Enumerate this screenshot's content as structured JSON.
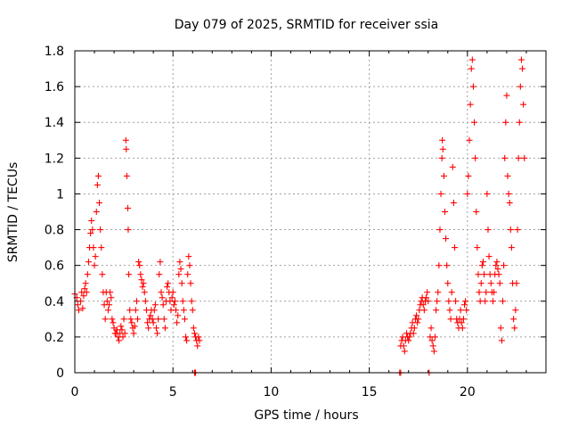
{
  "chart_data": {
    "type": "scatter",
    "title": "Day 079 of 2025, SRMTID for receiver ssia",
    "xlabel": "GPS time / hours",
    "ylabel": "SRMTID / TECUs",
    "xlim": [
      0,
      24
    ],
    "ylim": [
      0,
      1.8
    ],
    "xticks": [
      0,
      5,
      10,
      15,
      20
    ],
    "xtick_labels": [
      "0",
      "5",
      "10",
      "15",
      "20"
    ],
    "yticks": [
      0,
      0.2,
      0.4,
      0.6,
      0.8,
      1,
      1.2,
      1.4,
      1.6,
      1.8
    ],
    "ytick_labels": [
      "0",
      "0.2",
      "0.4",
      "0.6",
      "0.8",
      "1",
      "1.2",
      "1.4",
      "1.6",
      "1.8"
    ],
    "grid": true,
    "marker": "plus",
    "color": "#ff0000",
    "series": [
      {
        "name": "SRMTID",
        "points": [
          [
            0.0,
            0.44
          ],
          [
            0.1,
            0.42
          ],
          [
            0.15,
            0.38
          ],
          [
            0.2,
            0.35
          ],
          [
            0.3,
            0.4
          ],
          [
            0.35,
            0.45
          ],
          [
            0.4,
            0.36
          ],
          [
            0.45,
            0.43
          ],
          [
            0.5,
            0.47
          ],
          [
            0.55,
            0.5
          ],
          [
            0.6,
            0.45
          ],
          [
            0.65,
            0.55
          ],
          [
            0.7,
            0.62
          ],
          [
            0.75,
            0.7
          ],
          [
            0.8,
            0.78
          ],
          [
            0.85,
            0.85
          ],
          [
            0.9,
            0.8
          ],
          [
            0.95,
            0.7
          ],
          [
            1.0,
            0.6
          ],
          [
            1.05,
            0.65
          ],
          [
            1.1,
            0.9
          ],
          [
            1.15,
            1.05
          ],
          [
            1.2,
            1.1
          ],
          [
            1.25,
            0.95
          ],
          [
            1.3,
            0.8
          ],
          [
            1.35,
            0.7
          ],
          [
            1.4,
            0.55
          ],
          [
            1.45,
            0.45
          ],
          [
            1.5,
            0.38
          ],
          [
            1.55,
            0.3
          ],
          [
            1.6,
            0.45
          ],
          [
            1.65,
            0.4
          ],
          [
            1.7,
            0.35
          ],
          [
            1.75,
            0.38
          ],
          [
            1.8,
            0.45
          ],
          [
            1.85,
            0.42
          ],
          [
            1.9,
            0.3
          ],
          [
            1.95,
            0.28
          ],
          [
            2.0,
            0.25
          ],
          [
            2.05,
            0.22
          ],
          [
            2.1,
            0.22
          ],
          [
            2.15,
            0.24
          ],
          [
            2.2,
            0.2
          ],
          [
            2.25,
            0.18
          ],
          [
            2.3,
            0.22
          ],
          [
            2.35,
            0.26
          ],
          [
            2.4,
            0.24
          ],
          [
            2.45,
            0.2
          ],
          [
            2.5,
            0.3
          ],
          [
            2.55,
            0.22
          ],
          [
            2.6,
            1.3
          ],
          [
            2.62,
            1.25
          ],
          [
            2.65,
            1.1
          ],
          [
            2.7,
            0.92
          ],
          [
            2.72,
            0.8
          ],
          [
            2.75,
            0.55
          ],
          [
            2.8,
            0.35
          ],
          [
            2.85,
            0.3
          ],
          [
            2.9,
            0.28
          ],
          [
            2.95,
            0.25
          ],
          [
            3.0,
            0.22
          ],
          [
            3.05,
            0.26
          ],
          [
            3.1,
            0.35
          ],
          [
            3.15,
            0.4
          ],
          [
            3.2,
            0.3
          ],
          [
            3.25,
            0.62
          ],
          [
            3.3,
            0.6
          ],
          [
            3.35,
            0.55
          ],
          [
            3.4,
            0.52
          ],
          [
            3.45,
            0.48
          ],
          [
            3.5,
            0.5
          ],
          [
            3.55,
            0.45
          ],
          [
            3.6,
            0.4
          ],
          [
            3.65,
            0.35
          ],
          [
            3.7,
            0.28
          ],
          [
            3.75,
            0.25
          ],
          [
            3.8,
            0.3
          ],
          [
            3.85,
            0.32
          ],
          [
            3.9,
            0.35
          ],
          [
            3.95,
            0.3
          ],
          [
            4.0,
            0.28
          ],
          [
            4.05,
            0.35
          ],
          [
            4.1,
            0.38
          ],
          [
            4.15,
            0.25
          ],
          [
            4.2,
            0.22
          ],
          [
            4.25,
            0.3
          ],
          [
            4.3,
            0.55
          ],
          [
            4.35,
            0.62
          ],
          [
            4.4,
            0.45
          ],
          [
            4.45,
            0.42
          ],
          [
            4.5,
            0.38
          ],
          [
            4.55,
            0.3
          ],
          [
            4.6,
            0.25
          ],
          [
            4.65,
            0.4
          ],
          [
            4.7,
            0.48
          ],
          [
            4.75,
            0.5
          ],
          [
            4.8,
            0.45
          ],
          [
            4.85,
            0.4
          ],
          [
            4.9,
            0.35
          ],
          [
            4.95,
            0.42
          ],
          [
            5.0,
            0.45
          ],
          [
            5.05,
            0.38
          ],
          [
            5.1,
            0.4
          ],
          [
            5.15,
            0.35
          ],
          [
            5.2,
            0.28
          ],
          [
            5.25,
            0.32
          ],
          [
            5.3,
            0.55
          ],
          [
            5.35,
            0.62
          ],
          [
            5.4,
            0.58
          ],
          [
            5.45,
            0.5
          ],
          [
            5.5,
            0.4
          ],
          [
            5.55,
            0.35
          ],
          [
            5.6,
            0.3
          ],
          [
            5.65,
            0.2
          ],
          [
            5.7,
            0.18
          ],
          [
            5.75,
            0.55
          ],
          [
            5.8,
            0.65
          ],
          [
            5.85,
            0.6
          ],
          [
            5.9,
            0.5
          ],
          [
            5.95,
            0.4
          ],
          [
            6.0,
            0.35
          ],
          [
            6.05,
            0.25
          ],
          [
            6.1,
            0.22
          ],
          [
            6.15,
            0.2
          ],
          [
            6.2,
            0.18
          ],
          [
            6.25,
            0.15
          ],
          [
            6.3,
            0.2
          ],
          [
            6.35,
            0.18
          ],
          [
            6.1,
            0.0
          ],
          [
            6.15,
            0.0
          ],
          [
            16.55,
            0.0
          ],
          [
            16.6,
            0.0
          ],
          [
            16.6,
            0.15
          ],
          [
            16.65,
            0.18
          ],
          [
            16.7,
            0.2
          ],
          [
            16.75,
            0.15
          ],
          [
            16.8,
            0.12
          ],
          [
            16.85,
            0.18
          ],
          [
            16.9,
            0.22
          ],
          [
            16.95,
            0.2
          ],
          [
            17.0,
            0.18
          ],
          [
            17.05,
            0.2
          ],
          [
            17.1,
            0.22
          ],
          [
            17.15,
            0.25
          ],
          [
            17.2,
            0.28
          ],
          [
            17.25,
            0.22
          ],
          [
            17.3,
            0.25
          ],
          [
            17.35,
            0.3
          ],
          [
            17.4,
            0.32
          ],
          [
            17.45,
            0.28
          ],
          [
            17.5,
            0.3
          ],
          [
            17.55,
            0.35
          ],
          [
            17.6,
            0.38
          ],
          [
            17.65,
            0.4
          ],
          [
            17.7,
            0.42
          ],
          [
            17.75,
            0.38
          ],
          [
            17.8,
            0.35
          ],
          [
            17.85,
            0.4
          ],
          [
            17.9,
            0.42
          ],
          [
            17.95,
            0.45
          ],
          [
            18.0,
            0.4
          ],
          [
            18.05,
            0.0
          ],
          [
            18.1,
            0.2
          ],
          [
            18.15,
            0.25
          ],
          [
            18.2,
            0.18
          ],
          [
            18.25,
            0.15
          ],
          [
            18.3,
            0.12
          ],
          [
            18.35,
            0.2
          ],
          [
            18.4,
            0.35
          ],
          [
            18.45,
            0.4
          ],
          [
            18.5,
            0.45
          ],
          [
            18.55,
            0.6
          ],
          [
            18.6,
            0.8
          ],
          [
            18.65,
            1.0
          ],
          [
            18.7,
            1.2
          ],
          [
            18.72,
            1.3
          ],
          [
            18.75,
            1.25
          ],
          [
            18.8,
            1.1
          ],
          [
            18.85,
            0.9
          ],
          [
            18.9,
            0.75
          ],
          [
            18.95,
            0.6
          ],
          [
            19.0,
            0.5
          ],
          [
            19.05,
            0.4
          ],
          [
            19.1,
            0.35
          ],
          [
            19.15,
            0.3
          ],
          [
            19.2,
            0.45
          ],
          [
            19.25,
            1.15
          ],
          [
            19.3,
            0.95
          ],
          [
            19.35,
            0.7
          ],
          [
            19.4,
            0.4
          ],
          [
            19.45,
            0.3
          ],
          [
            19.5,
            0.28
          ],
          [
            19.55,
            0.25
          ],
          [
            19.6,
            0.3
          ],
          [
            19.65,
            0.35
          ],
          [
            19.7,
            0.28
          ],
          [
            19.75,
            0.25
          ],
          [
            19.8,
            0.3
          ],
          [
            19.85,
            0.38
          ],
          [
            19.9,
            0.4
          ],
          [
            19.95,
            0.35
          ],
          [
            20.0,
            1.0
          ],
          [
            20.05,
            1.1
          ],
          [
            20.1,
            1.3
          ],
          [
            20.15,
            1.5
          ],
          [
            20.2,
            1.7
          ],
          [
            20.25,
            1.75
          ],
          [
            20.3,
            1.6
          ],
          [
            20.35,
            1.4
          ],
          [
            20.4,
            1.2
          ],
          [
            20.45,
            0.9
          ],
          [
            20.5,
            0.7
          ],
          [
            20.55,
            0.55
          ],
          [
            20.6,
            0.45
          ],
          [
            20.65,
            0.4
          ],
          [
            20.7,
            0.5
          ],
          [
            20.75,
            0.6
          ],
          [
            20.8,
            0.62
          ],
          [
            20.85,
            0.55
          ],
          [
            20.9,
            0.4
          ],
          [
            20.95,
            0.45
          ],
          [
            21.0,
            1.0
          ],
          [
            21.05,
            0.8
          ],
          [
            21.1,
            0.65
          ],
          [
            21.15,
            0.55
          ],
          [
            21.2,
            0.5
          ],
          [
            21.25,
            0.45
          ],
          [
            21.3,
            0.4
          ],
          [
            21.35,
            0.45
          ],
          [
            21.4,
            0.55
          ],
          [
            21.45,
            0.6
          ],
          [
            21.5,
            0.62
          ],
          [
            21.55,
            0.58
          ],
          [
            21.6,
            0.55
          ],
          [
            21.65,
            0.5
          ],
          [
            21.7,
            0.25
          ],
          [
            21.75,
            0.18
          ],
          [
            21.8,
            0.4
          ],
          [
            21.85,
            0.6
          ],
          [
            21.9,
            1.2
          ],
          [
            21.95,
            1.4
          ],
          [
            22.0,
            1.55
          ],
          [
            22.05,
            1.1
          ],
          [
            22.1,
            1.0
          ],
          [
            22.15,
            0.95
          ],
          [
            22.2,
            0.8
          ],
          [
            22.25,
            0.7
          ],
          [
            22.3,
            0.5
          ],
          [
            22.35,
            0.3
          ],
          [
            22.4,
            0.25
          ],
          [
            22.45,
            0.35
          ],
          [
            22.5,
            0.5
          ],
          [
            22.55,
            0.8
          ],
          [
            22.6,
            1.2
          ],
          [
            22.65,
            1.4
          ],
          [
            22.7,
            1.6
          ],
          [
            22.75,
            1.75
          ],
          [
            22.8,
            1.7
          ],
          [
            22.85,
            1.5
          ],
          [
            22.9,
            1.2
          ]
        ]
      }
    ]
  }
}
